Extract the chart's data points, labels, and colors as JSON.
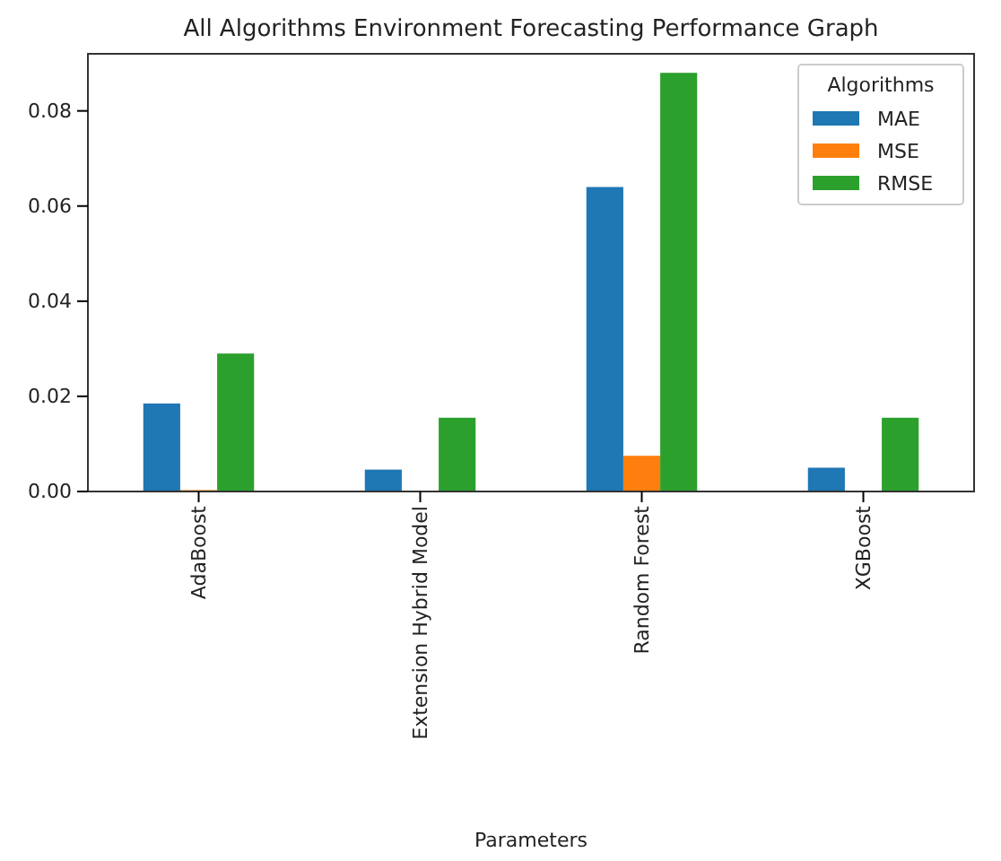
{
  "chart_data": {
    "type": "bar",
    "title": "All Algorithms Environment Forecasting Performance Graph",
    "xlabel": "Parameters",
    "legend_title": "Algorithms",
    "categories": [
      "AdaBoost",
      "Extension Hybrid Model",
      "Random Forest",
      "XGBoost"
    ],
    "series": [
      {
        "name": "MAE",
        "color": "#1f77b4",
        "values": [
          0.0185,
          0.0046,
          0.064,
          0.005
        ]
      },
      {
        "name": "MSE",
        "color": "#ff7f0e",
        "values": [
          0.0003,
          null,
          0.0075,
          null
        ]
      },
      {
        "name": "RMSE",
        "color": "#2ca02c",
        "values": [
          0.029,
          0.0155,
          0.088,
          0.0155
        ]
      }
    ],
    "ylim": [
      0,
      0.092
    ],
    "yticks": [
      {
        "value": 0,
        "label": "0.00"
      },
      {
        "value": 0.02,
        "label": "0.02"
      },
      {
        "value": 0.04,
        "label": "0.04"
      },
      {
        "value": 0.06,
        "label": "0.06"
      },
      {
        "value": 0.08,
        "label": "0.08"
      }
    ],
    "grid": false,
    "legend": "top right"
  }
}
